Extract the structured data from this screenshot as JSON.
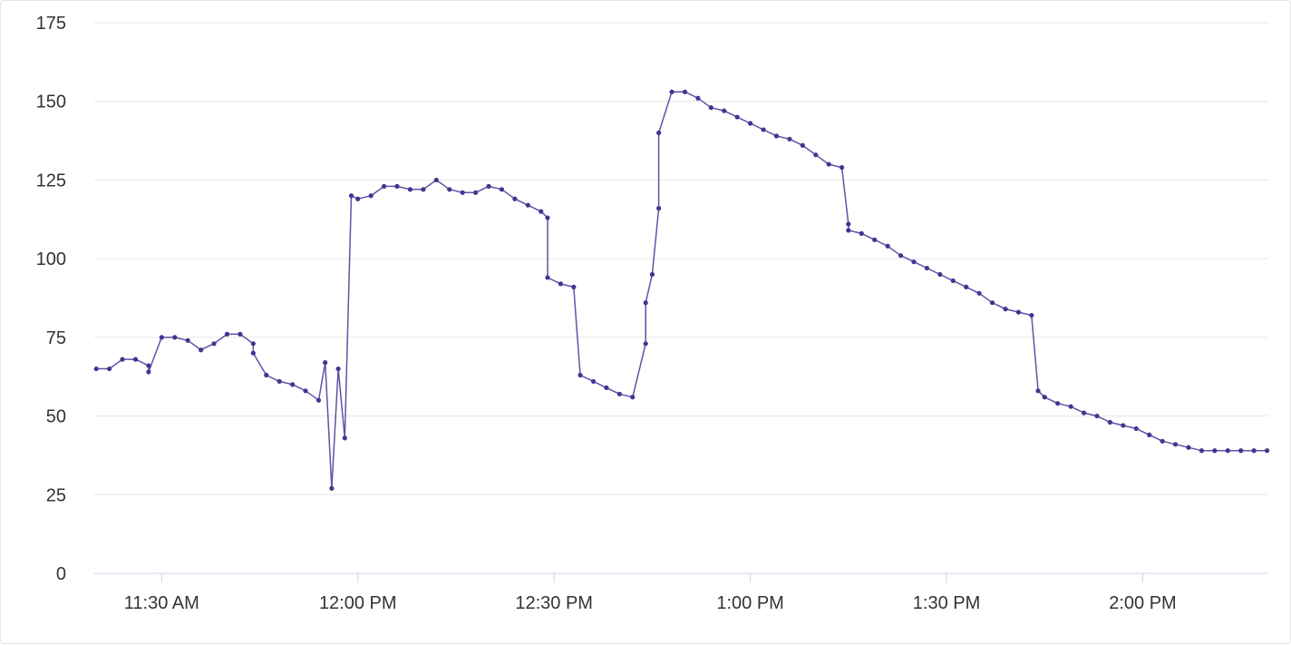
{
  "chart_data": {
    "type": "line",
    "title": "",
    "xlabel": "",
    "ylabel": "",
    "x_tick_labels": [
      "11:30 AM",
      "12:00 PM",
      "12:30 PM",
      "1:00 PM",
      "1:30 PM",
      "2:00 PM"
    ],
    "x_tick_minutes": [
      690,
      720,
      750,
      780,
      810,
      840
    ],
    "y_ticks": [
      0,
      25,
      50,
      75,
      100,
      125,
      150,
      175
    ],
    "ylim": [
      0,
      175
    ],
    "xlim_minutes": [
      679.7,
      859.2
    ],
    "grid": true,
    "legend": "none",
    "line_color": "#5b54a8",
    "series": [
      {
        "x_minutes": [
          680,
          682,
          684,
          686,
          688,
          688,
          690,
          692,
          694,
          696,
          698,
          700,
          702,
          704,
          704,
          706,
          708,
          710,
          712,
          714,
          715,
          716,
          717,
          718,
          719,
          720,
          722,
          724,
          726,
          728,
          730,
          732,
          734,
          736,
          738,
          740,
          742,
          744,
          746,
          748,
          749,
          749,
          751,
          753,
          754,
          756,
          758,
          760,
          762,
          764,
          764,
          765,
          766,
          766,
          768,
          770,
          772,
          774,
          776,
          778,
          780,
          782,
          784,
          786,
          788,
          790,
          792,
          794,
          795,
          795,
          797,
          799,
          801,
          803,
          805,
          807,
          809,
          811,
          813,
          815,
          817,
          819,
          821,
          823,
          824,
          825,
          827,
          829,
          831,
          833,
          835,
          837,
          839,
          841,
          843,
          845,
          847,
          849,
          851,
          853,
          855,
          857,
          859
        ],
        "values": [
          65,
          65,
          68,
          68,
          66,
          64,
          75,
          75,
          74,
          71,
          73,
          76,
          76,
          73,
          70,
          63,
          61,
          60,
          58,
          55,
          67,
          27,
          65,
          43,
          120,
          119,
          120,
          123,
          123,
          122,
          122,
          125,
          122,
          121,
          121,
          123,
          122,
          119,
          117,
          115,
          113,
          94,
          92,
          91,
          63,
          61,
          59,
          57,
          56,
          73,
          86,
          95,
          116,
          140,
          153,
          153,
          151,
          148,
          147,
          145,
          143,
          141,
          139,
          138,
          136,
          133,
          130,
          129,
          111,
          109,
          108,
          106,
          104,
          101,
          99,
          97,
          95,
          93,
          91,
          89,
          86,
          84,
          83,
          82,
          58,
          56,
          54,
          53,
          51,
          50,
          48,
          47,
          46,
          44,
          42,
          41,
          40,
          39,
          39,
          39,
          39,
          39,
          39
        ]
      }
    ]
  }
}
